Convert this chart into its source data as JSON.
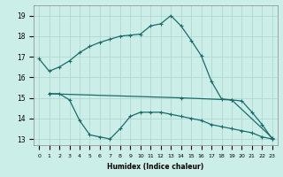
{
  "xlabel": "Humidex (Indice chaleur)",
  "ylabel": "",
  "bg_color": "#cceee8",
  "grid_color": "#aad4cc",
  "line_color": "#1a6b6b",
  "xlim": [
    -0.5,
    23.5
  ],
  "ylim": [
    12.7,
    19.5
  ],
  "yticks": [
    13,
    14,
    15,
    16,
    17,
    18,
    19
  ],
  "xticks": [
    0,
    1,
    2,
    3,
    4,
    5,
    6,
    7,
    8,
    9,
    10,
    11,
    12,
    13,
    14,
    15,
    16,
    17,
    18,
    19,
    20,
    21,
    22,
    23
  ],
  "line1_x": [
    0,
    1,
    2,
    3,
    4,
    5,
    6,
    7,
    8,
    9,
    10,
    11,
    12,
    13,
    14,
    15,
    16,
    17,
    18,
    19,
    20,
    21,
    22,
    23
  ],
  "line1_y": [
    16.9,
    16.3,
    16.5,
    16.8,
    17.2,
    17.5,
    17.7,
    17.85,
    18.0,
    18.05,
    18.1,
    18.5,
    18.6,
    19.0,
    18.5,
    17.8,
    17.05,
    15.8,
    14.95,
    14.9,
    14.85,
    14.3,
    13.7,
    13.0
  ],
  "line2_x": [
    1,
    2,
    3,
    4,
    5,
    6,
    7,
    8,
    9,
    10,
    11,
    12,
    13,
    14,
    15,
    16,
    17,
    18,
    19,
    20,
    21,
    22,
    23
  ],
  "line2_y": [
    15.2,
    15.2,
    14.9,
    13.9,
    13.2,
    13.1,
    13.0,
    13.5,
    14.1,
    14.3,
    14.3,
    14.3,
    14.2,
    14.1,
    14.0,
    13.9,
    13.7,
    13.6,
    13.5,
    13.4,
    13.3,
    13.1,
    13.0
  ],
  "line3_x": [
    1,
    14,
    19,
    23
  ],
  "line3_y": [
    15.2,
    15.0,
    14.9,
    13.05
  ]
}
